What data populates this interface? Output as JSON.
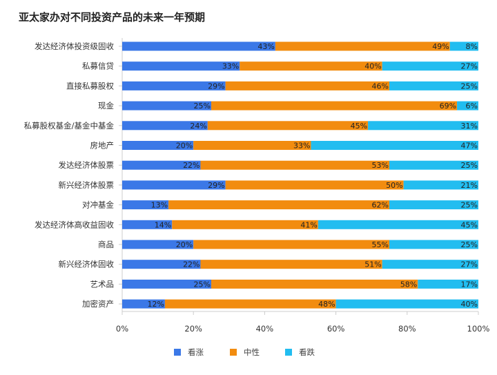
{
  "chart_data": {
    "type": "bar",
    "orientation": "horizontal",
    "stacked": true,
    "title": "亚太家办对不同投资产品的未来一年预期",
    "categories": [
      "发达经济体投资级固收",
      "私募信贷",
      "直接私募股权",
      "现金",
      "私募股权基金/基金中基金",
      "房地产",
      "发达经济体股票",
      "新兴经济体股票",
      "对冲基金",
      "发达经济体高收益固收",
      "商品",
      "新兴经济体固收",
      "艺术品",
      "加密资产"
    ],
    "series": [
      {
        "name": "看涨",
        "color": "#3b78e7",
        "values": [
          43,
          33,
          29,
          25,
          24,
          20,
          22,
          29,
          13,
          14,
          20,
          22,
          25,
          12
        ]
      },
      {
        "name": "中性",
        "color": "#f28c0f",
        "values": [
          49,
          40,
          46,
          69,
          45,
          33,
          53,
          50,
          62,
          41,
          55,
          51,
          58,
          48
        ]
      },
      {
        "name": "看跌",
        "color": "#22bdf0",
        "values": [
          8,
          27,
          25,
          6,
          31,
          47,
          25,
          21,
          25,
          45,
          25,
          27,
          17,
          40
        ]
      }
    ],
    "value_suffix": "%",
    "xlim": [
      0,
      100
    ],
    "xticks": [
      "0%",
      "20%",
      "40%",
      "60%",
      "80%",
      "100%"
    ],
    "legend_position": "bottom"
  }
}
